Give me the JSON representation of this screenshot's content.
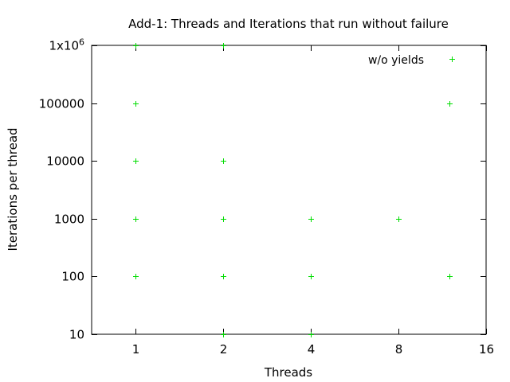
{
  "chart_data": {
    "type": "scatter",
    "title": "Add-1: Threads and Iterations that run without failure",
    "xlabel": "Threads",
    "ylabel": "Iterations per thread",
    "x_scale": "log2",
    "y_scale": "log10",
    "xlim": [
      0.707,
      16
    ],
    "ylim": [
      10,
      1000000
    ],
    "x_ticks": [
      {
        "value": 1,
        "label": "1"
      },
      {
        "value": 2,
        "label": "2"
      },
      {
        "value": 4,
        "label": "4"
      },
      {
        "value": 8,
        "label": "8"
      },
      {
        "value": 16,
        "label": "16"
      }
    ],
    "y_ticks": [
      {
        "value": 10,
        "label": "10"
      },
      {
        "value": 100,
        "label": "100"
      },
      {
        "value": 1000,
        "label": "1000"
      },
      {
        "value": 10000,
        "label": "10000"
      },
      {
        "value": 100000,
        "label": "100000"
      },
      {
        "value": 1000000,
        "label": "1x10",
        "sup": "6"
      }
    ],
    "grid": false,
    "legend_position": "top-right",
    "series": [
      {
        "name": "w/o yields",
        "color": "#00dd00",
        "marker": "plus",
        "points": [
          {
            "x": 1,
            "y": 100
          },
          {
            "x": 1,
            "y": 1000
          },
          {
            "x": 1,
            "y": 10000
          },
          {
            "x": 1,
            "y": 100000
          },
          {
            "x": 1,
            "y": 1000000
          },
          {
            "x": 2,
            "y": 10
          },
          {
            "x": 2,
            "y": 100
          },
          {
            "x": 2,
            "y": 1000
          },
          {
            "x": 2,
            "y": 10000
          },
          {
            "x": 2,
            "y": 1000000
          },
          {
            "x": 4,
            "y": 10
          },
          {
            "x": 4,
            "y": 100
          },
          {
            "x": 4,
            "y": 1000
          },
          {
            "x": 8,
            "y": 1000
          },
          {
            "x": 12,
            "y": 100
          },
          {
            "x": 12,
            "y": 100000
          }
        ]
      }
    ]
  }
}
